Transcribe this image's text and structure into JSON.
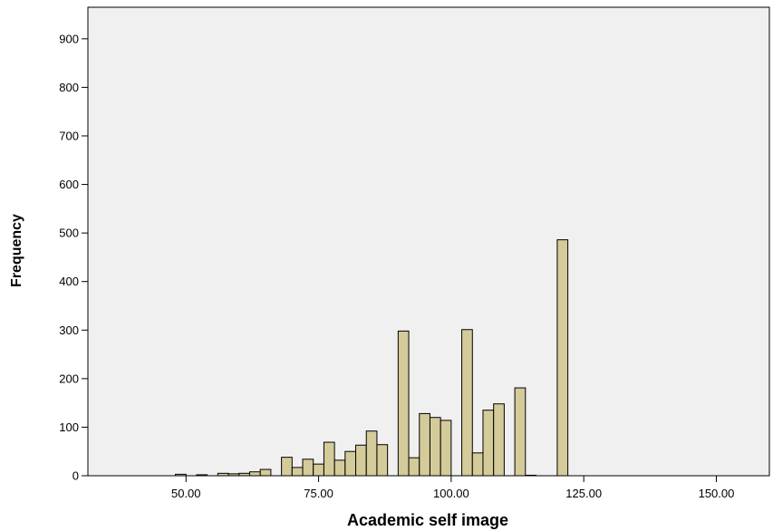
{
  "chart_data": {
    "type": "bar",
    "title": "",
    "xlabel": "Academic self image",
    "ylabel": "Frequency",
    "xlim": [
      31.5,
      160
    ],
    "ylim": [
      0,
      965
    ],
    "x_ticks": [
      50,
      75,
      100,
      125,
      150
    ],
    "x_tick_labels": [
      "50.00",
      "75.00",
      "100.00",
      "125.00",
      "150.00"
    ],
    "y_ticks": [
      0,
      100,
      200,
      300,
      400,
      500,
      600,
      700,
      800,
      900
    ],
    "y_tick_labels": [
      "0",
      "100",
      "200",
      "300",
      "400",
      "500",
      "600",
      "700",
      "800",
      "900"
    ],
    "bin_width": 2,
    "bars": [
      {
        "x": 49,
        "value": 3
      },
      {
        "x": 53,
        "value": 2
      },
      {
        "x": 57,
        "value": 5
      },
      {
        "x": 59,
        "value": 4
      },
      {
        "x": 61,
        "value": 5
      },
      {
        "x": 63,
        "value": 8
      },
      {
        "x": 65,
        "value": 13
      },
      {
        "x": 69,
        "value": 38
      },
      {
        "x": 71,
        "value": 17
      },
      {
        "x": 73,
        "value": 34
      },
      {
        "x": 75,
        "value": 24
      },
      {
        "x": 77,
        "value": 69
      },
      {
        "x": 79,
        "value": 32
      },
      {
        "x": 81,
        "value": 50
      },
      {
        "x": 83,
        "value": 63
      },
      {
        "x": 85,
        "value": 92
      },
      {
        "x": 87,
        "value": 64
      },
      {
        "x": 91,
        "value": 298
      },
      {
        "x": 93,
        "value": 37
      },
      {
        "x": 95,
        "value": 128
      },
      {
        "x": 97,
        "value": 120
      },
      {
        "x": 99,
        "value": 114
      },
      {
        "x": 103,
        "value": 301
      },
      {
        "x": 105,
        "value": 47
      },
      {
        "x": 107,
        "value": 135
      },
      {
        "x": 109,
        "value": 148
      },
      {
        "x": 113,
        "value": 181
      },
      {
        "x": 115,
        "value": 1
      },
      {
        "x": 121,
        "value": 486
      }
    ],
    "grid": false,
    "legend": "none",
    "colors": {
      "bar_fill": "#d4cb9a",
      "bar_stroke": "#000000",
      "plot_background": "#f0f0f0"
    }
  }
}
